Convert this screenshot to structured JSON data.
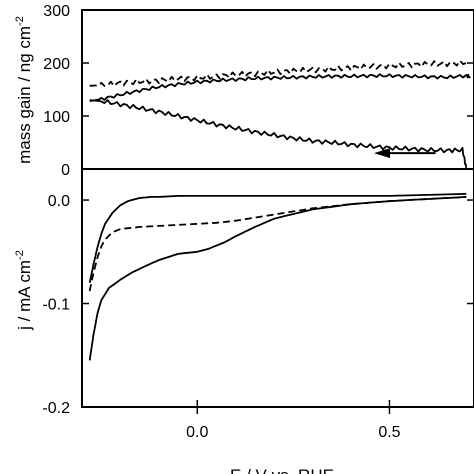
{
  "chart_data": [
    {
      "type": "line",
      "title": "",
      "xlabel": "",
      "ylabel": "mass gain / ng cm",
      "ylabel_sup": "-2",
      "xlim": [
        -0.3,
        0.72
      ],
      "ylim": [
        0,
        300
      ],
      "yticks": [
        0,
        100,
        200,
        300
      ],
      "yticklabels": [
        "0",
        "100",
        "200",
        "300"
      ],
      "grid": false,
      "legend": "none",
      "arrow": {
        "direction": "left",
        "from": [
          0.62,
          30
        ],
        "to": [
          0.46,
          30
        ]
      },
      "series": [
        {
          "dash": "dashed",
          "noise": 5,
          "x": [
            -0.28,
            -0.25,
            -0.2,
            -0.15,
            -0.1,
            -0.05,
            0.0,
            0.05,
            0.1,
            0.15,
            0.2,
            0.25,
            0.3,
            0.35,
            0.4,
            0.45,
            0.5,
            0.55,
            0.6,
            0.65,
            0.7
          ],
          "y": [
            157,
            158,
            162,
            165,
            167,
            170,
            172,
            175,
            178,
            180,
            183,
            185,
            187,
            189,
            191,
            193,
            195,
            196,
            198,
            199,
            200
          ]
        },
        {
          "dash": "solid",
          "noise": 3,
          "x": [
            -0.28,
            -0.25,
            -0.2,
            -0.15,
            -0.1,
            -0.05,
            0.0,
            0.05,
            0.1,
            0.15,
            0.2,
            0.25,
            0.3,
            0.35,
            0.4,
            0.45,
            0.5,
            0.55,
            0.6,
            0.65,
            0.7,
            0.71
          ],
          "y": [
            128,
            132,
            140,
            148,
            155,
            160,
            164,
            167,
            169,
            171,
            172,
            173,
            174,
            175,
            175,
            176,
            176,
            175,
            174,
            173,
            176,
            174
          ]
        },
        {
          "dash": "solid",
          "noise": 4,
          "x": [
            -0.28,
            -0.25,
            -0.2,
            -0.15,
            -0.1,
            -0.05,
            0.0,
            0.05,
            0.1,
            0.15,
            0.2,
            0.25,
            0.3,
            0.35,
            0.4,
            0.45,
            0.5,
            0.55,
            0.6,
            0.65,
            0.69,
            0.7
          ],
          "y": [
            130,
            128,
            122,
            115,
            108,
            100,
            92,
            84,
            77,
            70,
            64,
            58,
            53,
            50,
            46,
            43,
            40,
            38,
            36,
            35,
            36,
            2
          ]
        }
      ]
    },
    {
      "type": "line",
      "title": "",
      "xlabel": "E / V vs. RHE",
      "ylabel": "j / mA cm",
      "ylabel_sup": "-2",
      "xlim": [
        -0.3,
        0.72
      ],
      "ylim": [
        -0.2,
        0.03
      ],
      "xticks": [
        0.0,
        0.5
      ],
      "xticklabels": [
        "0.0",
        "0.5"
      ],
      "yticks": [
        -0.2,
        -0.1,
        0.0
      ],
      "yticklabels": [
        "-0.2",
        "-0.1",
        "0.0"
      ],
      "grid": false,
      "legend": "none",
      "series": [
        {
          "dash": "solid",
          "x": [
            -0.28,
            -0.27,
            -0.26,
            -0.25,
            -0.24,
            -0.22,
            -0.2,
            -0.18,
            -0.15,
            -0.12,
            -0.1,
            -0.05,
            0.0,
            0.05,
            0.1,
            0.15,
            0.2,
            0.3,
            0.4,
            0.5,
            0.6,
            0.7
          ],
          "y": [
            -0.08,
            -0.062,
            -0.046,
            -0.033,
            -0.023,
            -0.012,
            -0.005,
            -0.001,
            0.002,
            0.003,
            0.003,
            0.004,
            0.004,
            0.004,
            0.004,
            0.004,
            0.004,
            0.004,
            0.004,
            0.004,
            0.005,
            0.006
          ]
        },
        {
          "dash": "dashed",
          "x": [
            -0.28,
            -0.27,
            -0.26,
            -0.25,
            -0.24,
            -0.22,
            -0.2,
            -0.15,
            -0.1,
            -0.05,
            0.0,
            0.05,
            0.1,
            0.15,
            0.2,
            0.3,
            0.4,
            0.5,
            0.6,
            0.7
          ],
          "y": [
            -0.088,
            -0.07,
            -0.056,
            -0.045,
            -0.038,
            -0.031,
            -0.028,
            -0.026,
            -0.025,
            -0.024,
            -0.023,
            -0.022,
            -0.02,
            -0.017,
            -0.014,
            -0.008,
            -0.004,
            -0.001,
            0.001,
            0.003
          ]
        },
        {
          "dash": "solid",
          "x": [
            -0.28,
            -0.27,
            -0.26,
            -0.25,
            -0.23,
            -0.2,
            -0.17,
            -0.13,
            -0.1,
            -0.05,
            0.0,
            0.03,
            0.07,
            0.1,
            0.15,
            0.2,
            0.3,
            0.4,
            0.5,
            0.6,
            0.7
          ],
          "y": [
            -0.155,
            -0.13,
            -0.11,
            -0.097,
            -0.085,
            -0.077,
            -0.07,
            -0.063,
            -0.058,
            -0.052,
            -0.05,
            -0.047,
            -0.041,
            -0.035,
            -0.026,
            -0.018,
            -0.009,
            -0.004,
            -0.001,
            0.001,
            0.003
          ]
        }
      ]
    }
  ]
}
